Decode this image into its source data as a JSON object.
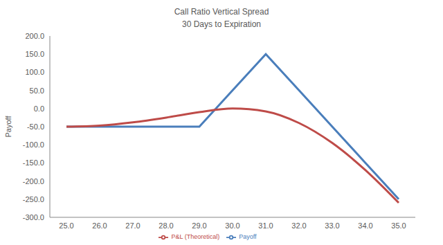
{
  "chart_data": {
    "type": "line",
    "title": "Call Ratio Vertical Spread",
    "subtitle": "30 Days to Expiration",
    "y_label": "Payoff",
    "x": [
      25,
      26,
      27,
      28,
      29,
      30,
      31,
      32,
      33,
      34,
      35
    ],
    "series": [
      {
        "name": "Payoff",
        "color": "#4a7ebb",
        "marker": "none",
        "line_style": "solid",
        "values": [
          -50,
          -50,
          -50,
          -50,
          -50,
          50,
          150,
          50,
          -50,
          -150,
          -250
        ]
      },
      {
        "name": "P&L (Theoretical)",
        "color": "#be4b48",
        "marker": "none",
        "line_style": "smooth",
        "values": [
          -50,
          -47,
          -38,
          -25,
          -10,
          0,
          -8,
          -40,
          -95,
          -170,
          -260
        ]
      }
    ],
    "xlim": [
      24.5,
      35.5
    ],
    "xticks": [
      {
        "value": 25,
        "label": "25.0"
      },
      {
        "value": 26,
        "label": "26.0"
      },
      {
        "value": 27,
        "label": "27.0"
      },
      {
        "value": 28,
        "label": "28.0"
      },
      {
        "value": 29,
        "label": "29.0"
      },
      {
        "value": 30,
        "label": "30.0"
      },
      {
        "value": 31,
        "label": "31.0"
      },
      {
        "value": 32,
        "label": "32.0"
      },
      {
        "value": 33,
        "label": "33.0"
      },
      {
        "value": 34,
        "label": "34.0"
      },
      {
        "value": 35,
        "label": "35.0"
      }
    ],
    "ylim": [
      -300,
      200
    ],
    "yticks": [
      {
        "value": -300,
        "label": "-300.0"
      },
      {
        "value": -250,
        "label": "-250.0"
      },
      {
        "value": -200,
        "label": "-200.0"
      },
      {
        "value": -150,
        "label": "-150.0"
      },
      {
        "value": -100,
        "label": "-100.0"
      },
      {
        "value": -50,
        "label": "-50.0"
      },
      {
        "value": 0,
        "label": "0.0"
      },
      {
        "value": 50,
        "label": "50.0"
      },
      {
        "value": 100,
        "label": "100.0"
      },
      {
        "value": 150,
        "label": "150.0"
      },
      {
        "value": 200,
        "label": "200.0"
      }
    ],
    "grid": false,
    "legend": "bottom"
  }
}
